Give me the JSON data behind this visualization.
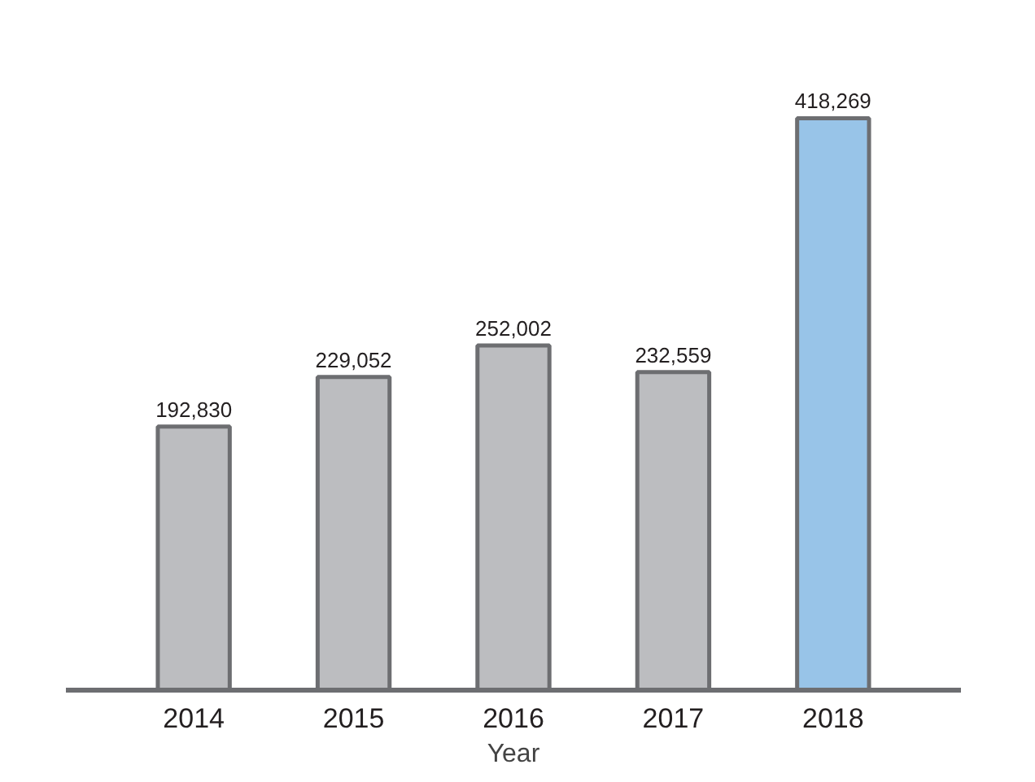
{
  "chart_data": {
    "type": "bar",
    "categories": [
      "2014",
      "2015",
      "2016",
      "2017",
      "2018"
    ],
    "values": [
      192830,
      229052,
      252002,
      232559,
      418269
    ],
    "value_labels": [
      "192,830",
      "229,052",
      "252,002",
      "232,559",
      "418,269"
    ],
    "colors": [
      "#bcbdc0",
      "#bcbdc0",
      "#bcbdc0",
      "#bcbdc0",
      "#98c4e8"
    ],
    "xlabel": "Year"
  }
}
